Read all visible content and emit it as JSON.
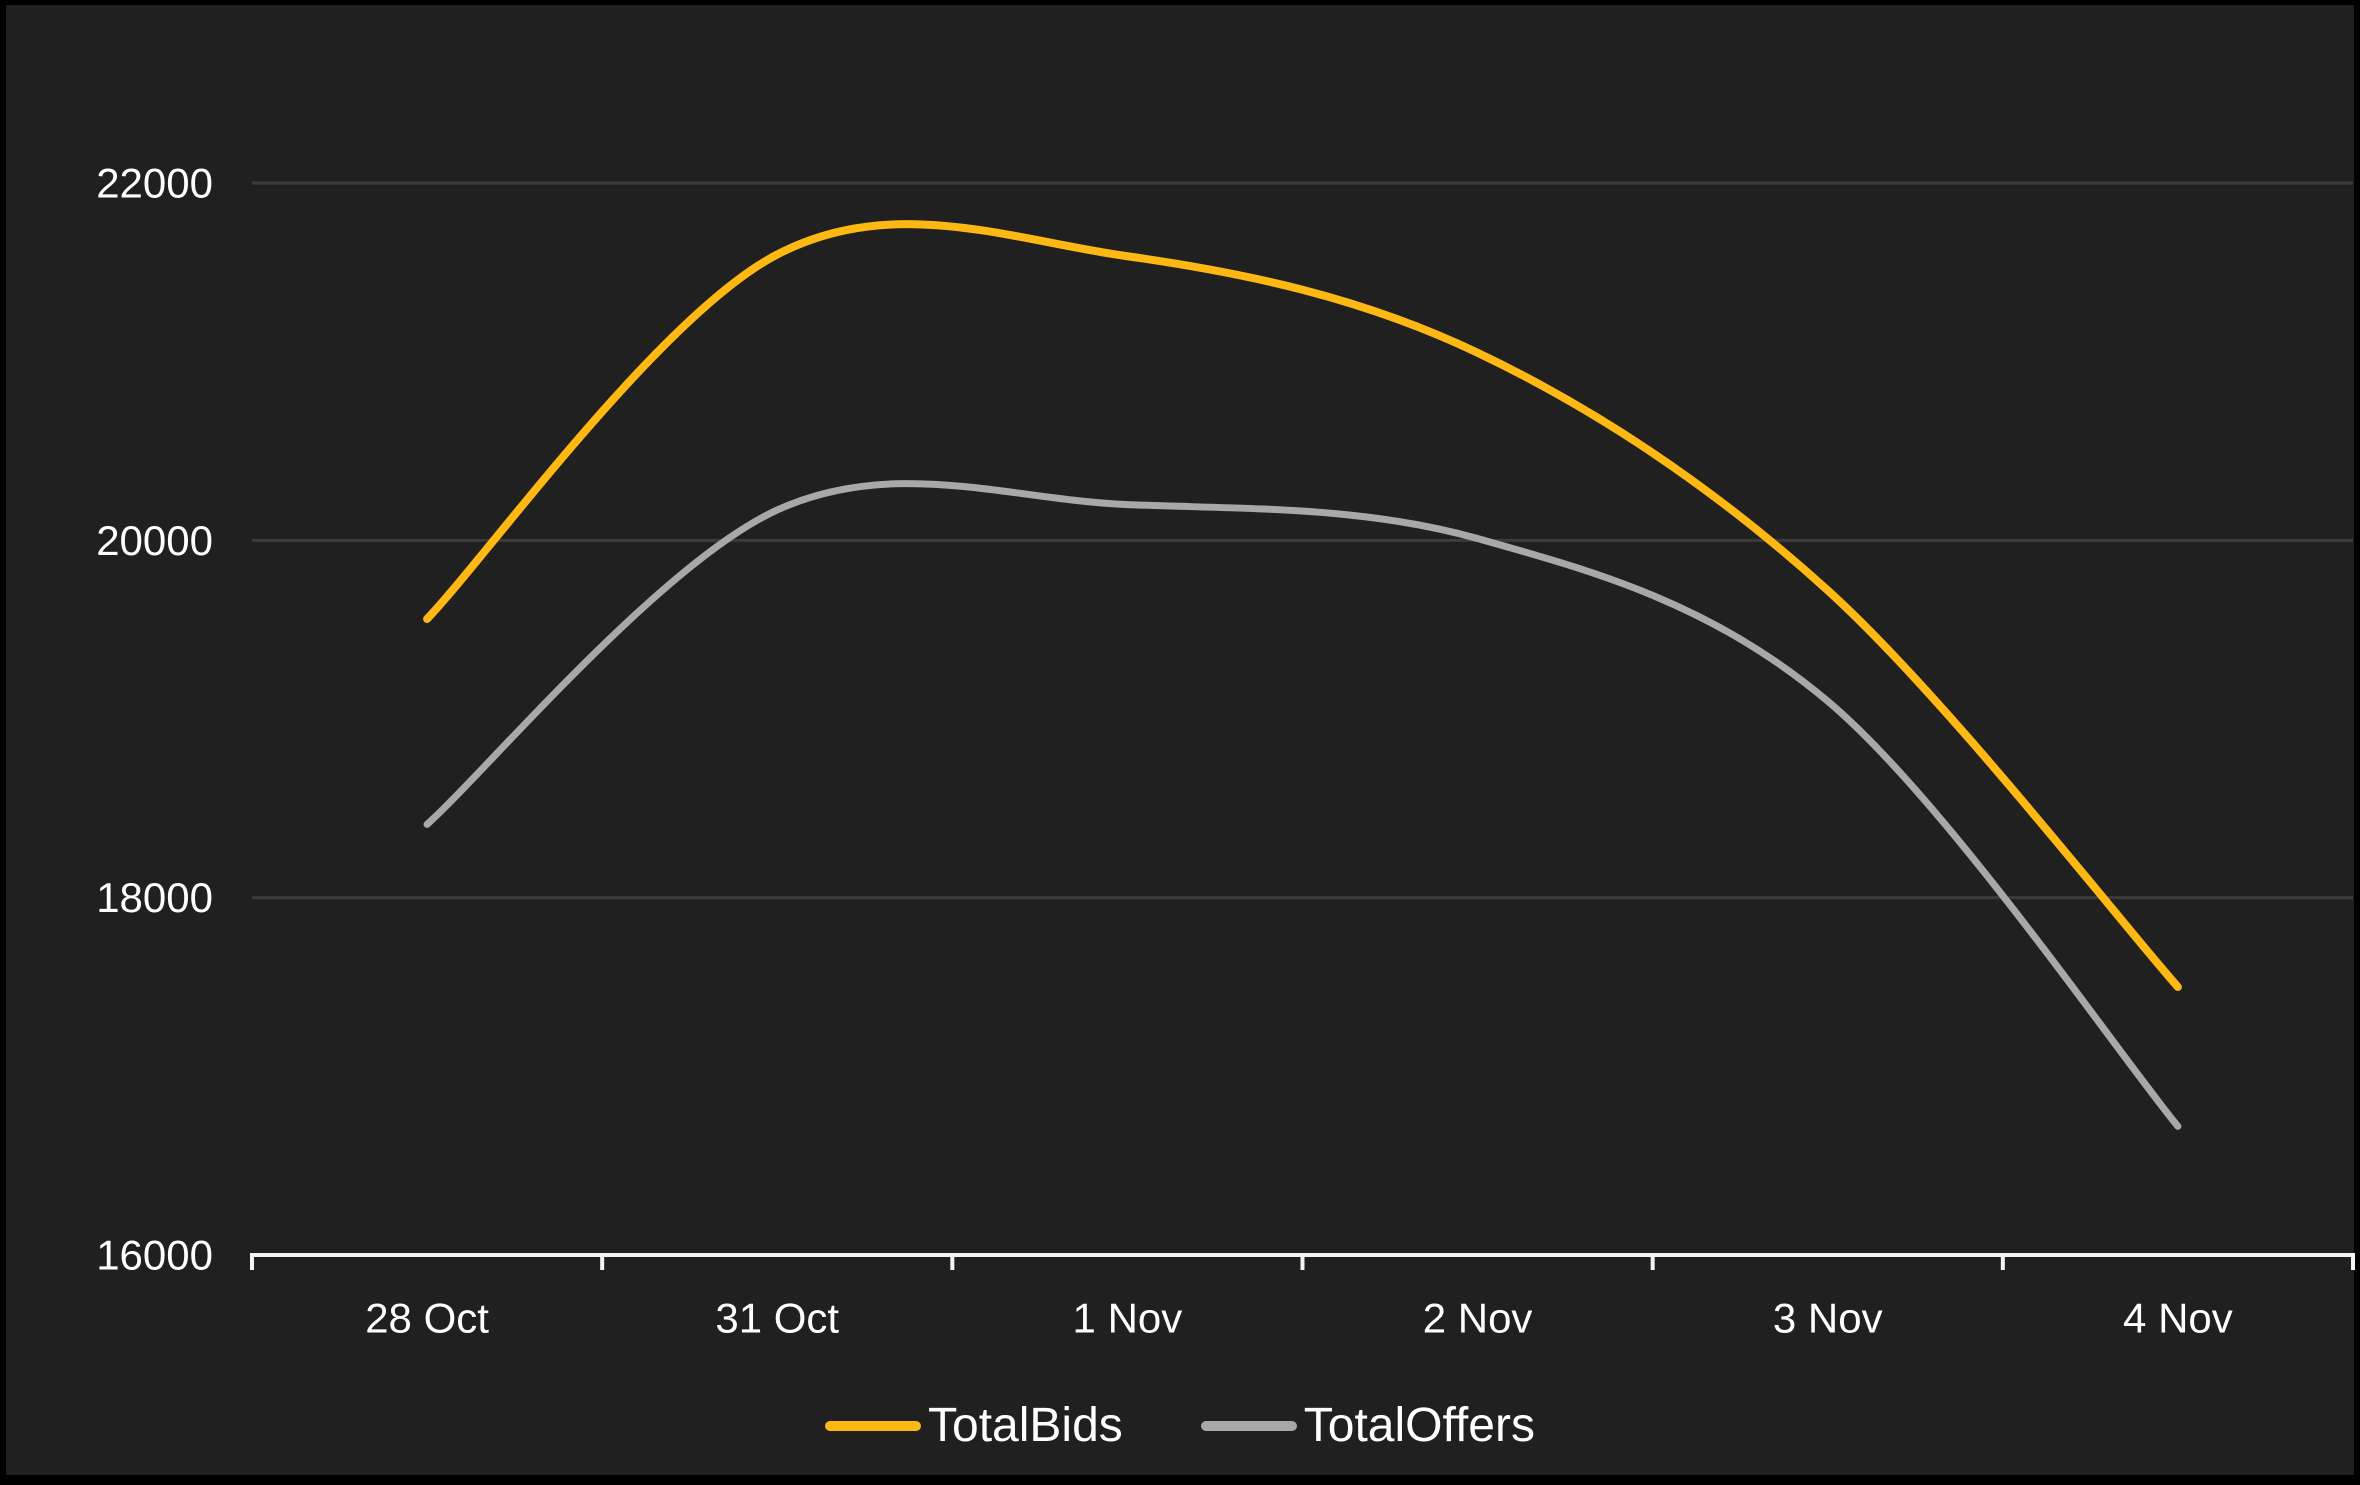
{
  "chart_data": {
    "type": "line",
    "smoothed": true,
    "categories": [
      "28 Oct",
      "31 Oct",
      "1 Nov",
      "2 Nov",
      "3 Nov",
      "4 Nov"
    ],
    "series": [
      {
        "name": "TotalBids",
        "color": "#FDB813",
        "values": [
          19560,
          21600,
          21590,
          21050,
          19720,
          17500
        ]
      },
      {
        "name": "TotalOffers",
        "color": "#A8A8A8",
        "values": [
          18410,
          20170,
          20200,
          20010,
          19100,
          16720
        ]
      }
    ],
    "title": "",
    "xlabel": "",
    "ylabel": "",
    "y_ticks": [
      16000,
      18000,
      20000,
      22000
    ],
    "ylim": [
      16000,
      22600
    ],
    "grid": "horizontal",
    "legend_position": "bottom",
    "colors": {
      "background": "#212020",
      "page_border": "#000000",
      "gridline": "#3B3B3B",
      "axis": "#F5F5F5",
      "tick_label": "#FFFFFF"
    }
  }
}
